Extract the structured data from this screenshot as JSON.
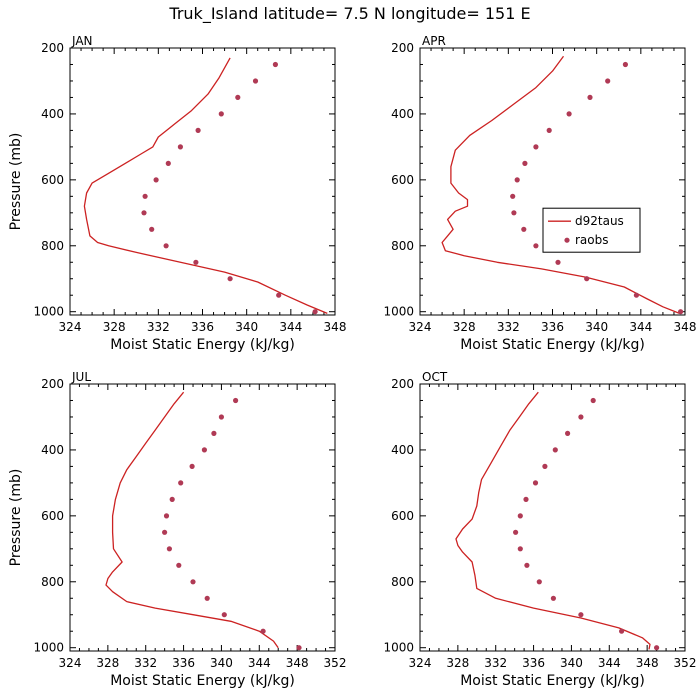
{
  "title": "Truk_Island  latitude= 7.5 N longitude= 151 E",
  "chart_data": [
    {
      "type": "line",
      "panel": "JAN",
      "xlabel": "Moist Static Energy (kJ/kg)",
      "ylabel": "Pressure (mb)",
      "xlim": [
        324,
        348
      ],
      "ylim": [
        1010,
        200
      ],
      "xticks": [
        "324",
        "328",
        "332",
        "336",
        "340",
        "344",
        "348"
      ],
      "yticks": [
        "200",
        "400",
        "600",
        "800",
        "1000"
      ],
      "series": [
        {
          "name": "d92taus",
          "style": "line",
          "points": [
            [
              338.5,
              230
            ],
            [
              337.5,
              290
            ],
            [
              336.5,
              340
            ],
            [
              335,
              390
            ],
            [
              333.5,
              430
            ],
            [
              332,
              470
            ],
            [
              331.5,
              500
            ],
            [
              330.5,
              520
            ],
            [
              329,
              550
            ],
            [
              327.5,
              580
            ],
            [
              326,
              610
            ],
            [
              325.5,
              640
            ],
            [
              325.3,
              680
            ],
            [
              325.5,
              720
            ],
            [
              325.8,
              770
            ],
            [
              326.5,
              790
            ],
            [
              327.5,
              800
            ],
            [
              330,
              820
            ],
            [
              334,
              850
            ],
            [
              338,
              880
            ],
            [
              341,
              910
            ],
            [
              343.5,
              950
            ],
            [
              345.5,
              980
            ],
            [
              347.3,
              1005
            ]
          ]
        },
        {
          "name": "raobs",
          "style": "dots",
          "points": [
            [
              342.6,
              250
            ],
            [
              340.8,
              300
            ],
            [
              339.2,
              350
            ],
            [
              337.7,
              400
            ],
            [
              335.6,
              450
            ],
            [
              334.0,
              500
            ],
            [
              332.9,
              550
            ],
            [
              331.8,
              600
            ],
            [
              330.8,
              650
            ],
            [
              330.7,
              700
            ],
            [
              331.4,
              750
            ],
            [
              332.7,
              800
            ],
            [
              335.4,
              850
            ],
            [
              338.5,
              900
            ],
            [
              342.9,
              950
            ],
            [
              346.2,
              1000
            ]
          ]
        }
      ]
    },
    {
      "type": "line",
      "panel": "APR",
      "xlabel": "Moist Static Energy (kJ/kg)",
      "ylabel": "",
      "xlim": [
        324,
        348
      ],
      "ylim": [
        1010,
        200
      ],
      "xticks": [
        "324",
        "328",
        "332",
        "336",
        "340",
        "344",
        "348"
      ],
      "yticks": [
        "200",
        "400",
        "600",
        "800",
        "1000"
      ],
      "legend": {
        "position": "right",
        "entries": [
          "d92taus",
          "raobs"
        ]
      },
      "series": [
        {
          "name": "d92taus",
          "style": "line",
          "points": [
            [
              337,
              225
            ],
            [
              336,
              270
            ],
            [
              334.5,
              320
            ],
            [
              332.5,
              370
            ],
            [
              330.5,
              420
            ],
            [
              328.5,
              465
            ],
            [
              327.2,
              510
            ],
            [
              326.8,
              560
            ],
            [
              326.8,
              610
            ],
            [
              327.5,
              640
            ],
            [
              328.3,
              660
            ],
            [
              328.3,
              680
            ],
            [
              327.2,
              695
            ],
            [
              326.5,
              720
            ],
            [
              327,
              750
            ],
            [
              326.5,
              770
            ],
            [
              326,
              790
            ],
            [
              326.3,
              815
            ],
            [
              328,
              830
            ],
            [
              331,
              850
            ],
            [
              335,
              870
            ],
            [
              339,
              895
            ],
            [
              342.5,
              925
            ],
            [
              344.5,
              960
            ],
            [
              346,
              985
            ],
            [
              347.5,
              1005
            ]
          ]
        },
        {
          "name": "raobs",
          "style": "dots",
          "points": [
            [
              342.6,
              250
            ],
            [
              341.0,
              300
            ],
            [
              339.4,
              350
            ],
            [
              337.5,
              400
            ],
            [
              335.7,
              450
            ],
            [
              334.5,
              500
            ],
            [
              333.5,
              550
            ],
            [
              332.8,
              600
            ],
            [
              332.4,
              650
            ],
            [
              332.5,
              700
            ],
            [
              333.4,
              750
            ],
            [
              334.5,
              800
            ],
            [
              336.5,
              850
            ],
            [
              339.1,
              900
            ],
            [
              343.6,
              950
            ],
            [
              347.6,
              1000
            ]
          ]
        }
      ]
    },
    {
      "type": "line",
      "panel": "JUL",
      "xlabel": "Moist Static Energy (kJ/kg)",
      "ylabel": "Pressure (mb)",
      "xlim": [
        324,
        352
      ],
      "ylim": [
        1010,
        200
      ],
      "xticks": [
        "324",
        "328",
        "332",
        "336",
        "340",
        "344",
        "348",
        "352"
      ],
      "yticks": [
        "200",
        "400",
        "600",
        "800",
        "1000"
      ],
      "series": [
        {
          "name": "d92taus",
          "style": "line",
          "points": [
            [
              336,
              225
            ],
            [
              335,
              260
            ],
            [
              334,
              300
            ],
            [
              333,
              340
            ],
            [
              332,
              380
            ],
            [
              331,
              420
            ],
            [
              330,
              460
            ],
            [
              329.3,
              500
            ],
            [
              328.8,
              550
            ],
            [
              328.5,
              600
            ],
            [
              328.5,
              650
            ],
            [
              328.6,
              700
            ],
            [
              329.5,
              740
            ],
            [
              328.5,
              770
            ],
            [
              328,
              790
            ],
            [
              327.8,
              810
            ],
            [
              328.5,
              830
            ],
            [
              330,
              860
            ],
            [
              333,
              880
            ],
            [
              337,
              900
            ],
            [
              341,
              920
            ],
            [
              344,
              950
            ],
            [
              345.5,
              980
            ],
            [
              346,
              1000
            ]
          ]
        },
        {
          "name": "raobs",
          "style": "dots",
          "points": [
            [
              341.5,
              250
            ],
            [
              340,
              300
            ],
            [
              339.2,
              350
            ],
            [
              338.2,
              400
            ],
            [
              336.9,
              450
            ],
            [
              335.7,
              500
            ],
            [
              334.8,
              550
            ],
            [
              334.2,
              600
            ],
            [
              334,
              650
            ],
            [
              334.5,
              700
            ],
            [
              335.5,
              750
            ],
            [
              337,
              800
            ],
            [
              338.5,
              850
            ],
            [
              340.3,
              900
            ],
            [
              344.4,
              950
            ],
            [
              348.2,
              1000
            ]
          ]
        }
      ]
    },
    {
      "type": "line",
      "panel": "OCT",
      "xlabel": "Moist Static Energy (kJ/kg)",
      "ylabel": "",
      "xlim": [
        324,
        352
      ],
      "ylim": [
        1010,
        200
      ],
      "xticks": [
        "324",
        "328",
        "332",
        "336",
        "340",
        "344",
        "348",
        "352"
      ],
      "yticks": [
        "200",
        "400",
        "600",
        "800",
        "1000"
      ],
      "series": [
        {
          "name": "d92taus",
          "style": "line",
          "points": [
            [
              336.5,
              225
            ],
            [
              335.5,
              260
            ],
            [
              334.5,
              300
            ],
            [
              333.5,
              340
            ],
            [
              332.5,
              390
            ],
            [
              331.5,
              440
            ],
            [
              330.5,
              490
            ],
            [
              330.2,
              530
            ],
            [
              330,
              570
            ],
            [
              329.5,
              610
            ],
            [
              328.5,
              640
            ],
            [
              327.8,
              670
            ],
            [
              328,
              690
            ],
            [
              328.5,
              710
            ],
            [
              329.5,
              740
            ],
            [
              329.8,
              780
            ],
            [
              330,
              820
            ],
            [
              332,
              850
            ],
            [
              336,
              880
            ],
            [
              341,
              910
            ],
            [
              345,
              940
            ],
            [
              347.5,
              970
            ],
            [
              348.3,
              990
            ],
            [
              348.2,
              1005
            ]
          ]
        },
        {
          "name": "raobs",
          "style": "dots",
          "points": [
            [
              342.3,
              250
            ],
            [
              341,
              300
            ],
            [
              339.6,
              350
            ],
            [
              338.3,
              400
            ],
            [
              337.2,
              450
            ],
            [
              336.2,
              500
            ],
            [
              335.2,
              550
            ],
            [
              334.6,
              600
            ],
            [
              334.1,
              650
            ],
            [
              334.6,
              700
            ],
            [
              335.3,
              750
            ],
            [
              336.6,
              800
            ],
            [
              338.1,
              850
            ],
            [
              341,
              900
            ],
            [
              345.3,
              950
            ],
            [
              349,
              1000
            ]
          ]
        }
      ]
    }
  ],
  "colors": {
    "series_color": "#cc2222",
    "dot_color": "#b03a55",
    "axis": "#000000"
  }
}
